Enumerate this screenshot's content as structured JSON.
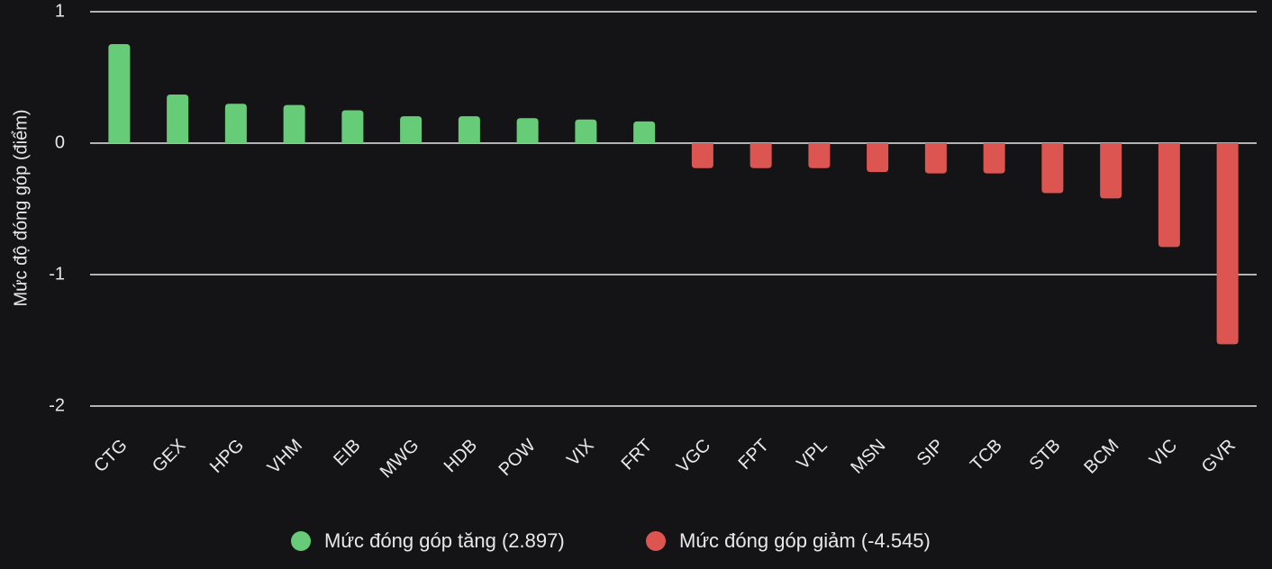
{
  "chart_data": {
    "type": "bar",
    "y_label": "Mức độ đóng góp (điểm)",
    "categories": [
      "CTG",
      "GEX",
      "HPG",
      "VHM",
      "EIB",
      "MWG",
      "HDB",
      "POW",
      "VIX",
      "FRT",
      "VGC",
      "FPT",
      "VPL",
      "MSN",
      "SIP",
      "TCB",
      "STB",
      "BCM",
      "VIC",
      "GVR"
    ],
    "series": [
      {
        "name": "Mức đóng góp tăng (2.897)",
        "color": "#66cc77",
        "values": [
          0.753,
          0.37,
          0.3,
          0.29,
          0.25,
          0.205,
          0.205,
          0.19,
          0.18,
          0.165,
          null,
          null,
          null,
          null,
          null,
          null,
          null,
          null,
          null,
          null
        ]
      },
      {
        "name": "Mức đóng góp giảm (-4.545)",
        "color": "#dd5550",
        "values": [
          null,
          null,
          null,
          null,
          null,
          null,
          null,
          null,
          null,
          null,
          -0.19,
          -0.19,
          -0.19,
          -0.22,
          -0.23,
          -0.23,
          -0.38,
          -0.42,
          -0.79,
          -1.53
        ]
      }
    ],
    "ylim": [
      -2,
      1
    ],
    "yticks": [
      -2,
      -1,
      0,
      1
    ],
    "grid": true
  }
}
